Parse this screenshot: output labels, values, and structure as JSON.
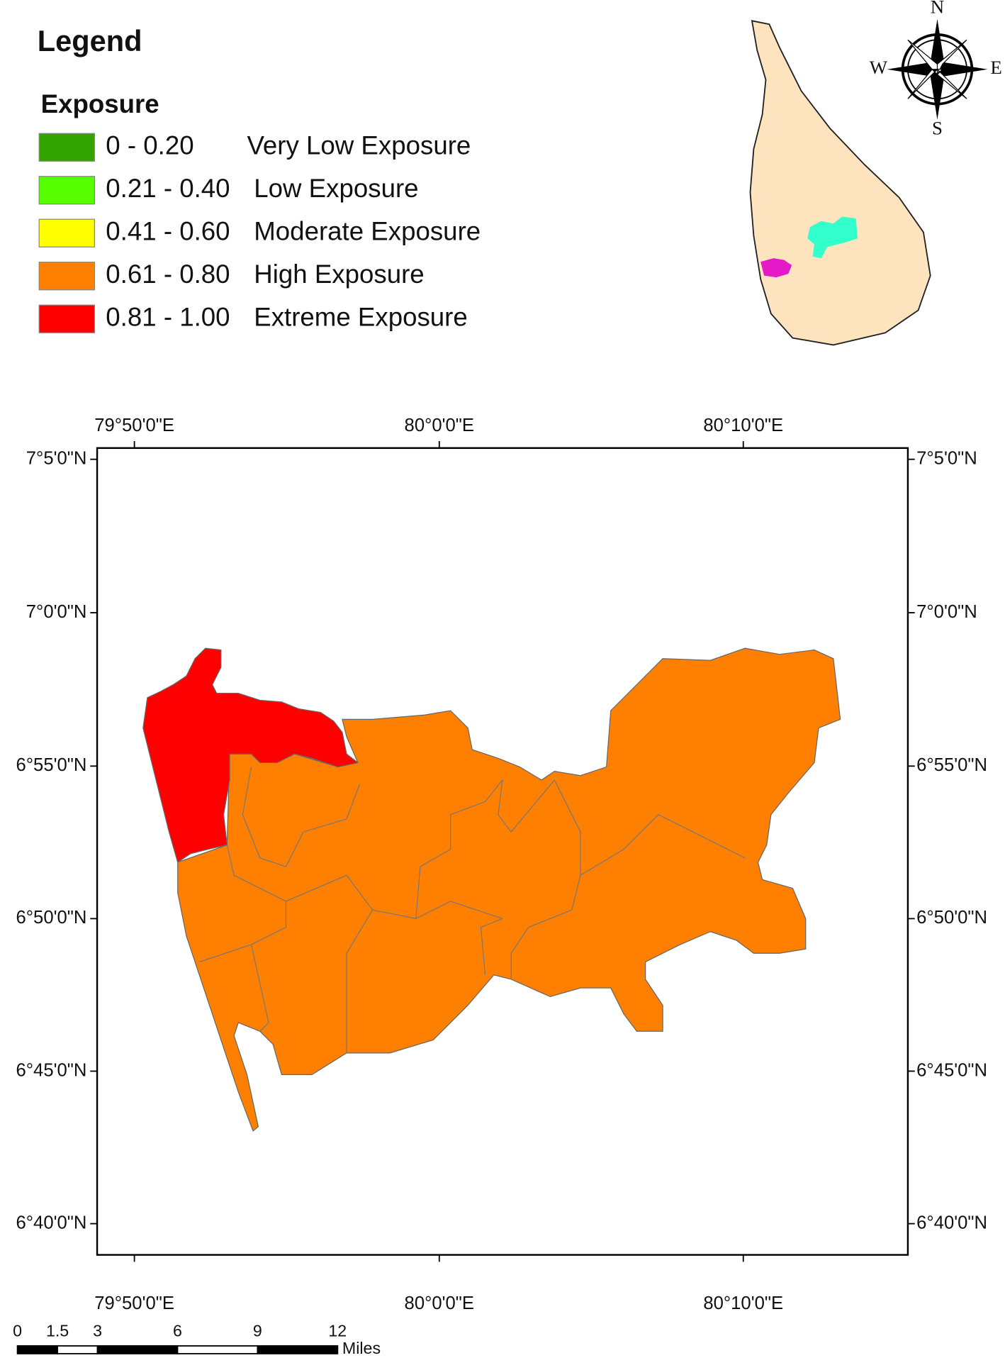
{
  "legend": {
    "title": "Legend",
    "subtitle": "Exposure",
    "items": [
      {
        "range": "0 - 0.20",
        "label": "Very Low Exposure",
        "color": "#33a300"
      },
      {
        "range": "0.21 - 0.40",
        "label": "Low Exposure",
        "color": "#55ff00"
      },
      {
        "range": "0.41 - 0.60",
        "label": "Moderate Exposure",
        "color": "#ffff00"
      },
      {
        "range": "0.61 - 0.80",
        "label": "High Exposure",
        "color": "#ff8000"
      },
      {
        "range": "0.81 - 1.00",
        "label": "Extreme Exposure",
        "color": "#ff0000"
      }
    ]
  },
  "compass": {
    "north": "N",
    "east": "E",
    "south": "S",
    "west": "W"
  },
  "map": {
    "longitudes": [
      "79°50'0\"E",
      "80°0'0\"E",
      "80°10'0\"E"
    ],
    "latitudes": [
      "7°5'0\"N",
      "7°0'0\"N",
      "6°55'0\"N",
      "6°50'0\"N",
      "6°45'0\"N",
      "6°40'0\"N"
    ]
  },
  "scale_bar": {
    "ticks": [
      0,
      1.5,
      3,
      6,
      9,
      12
    ],
    "unit": "Miles"
  }
}
